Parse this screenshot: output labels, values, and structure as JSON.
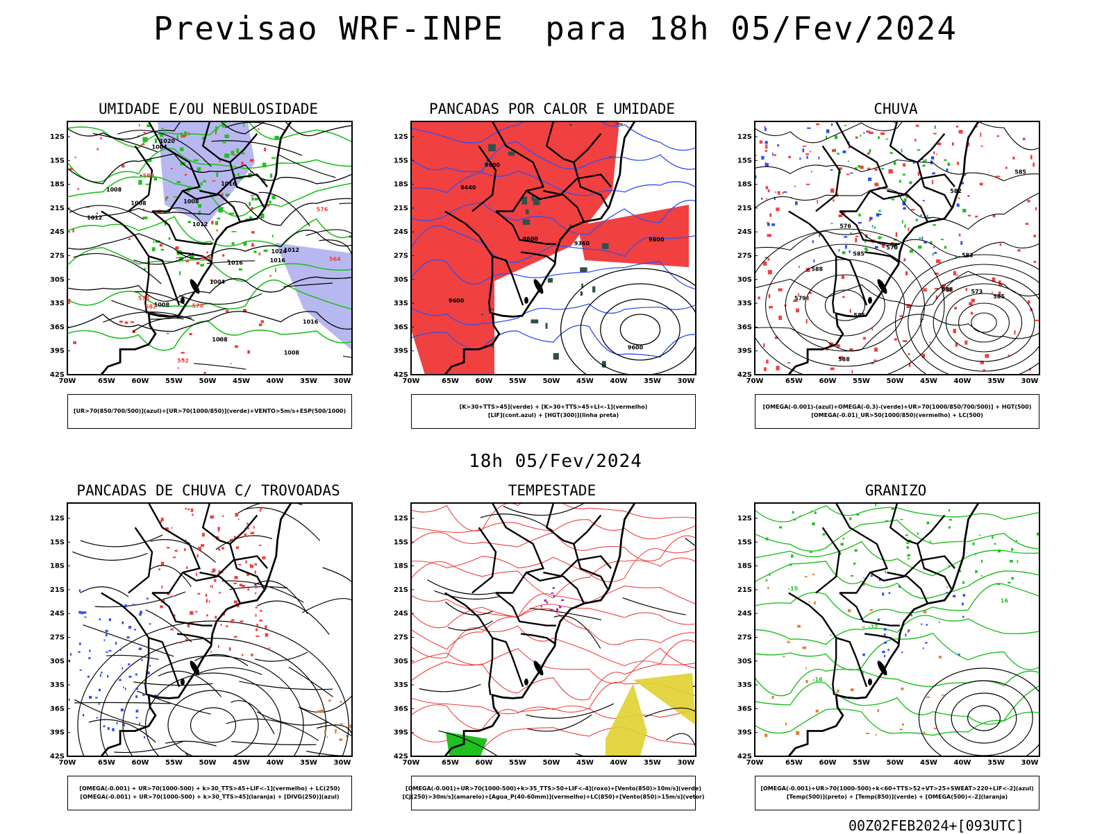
{
  "header": {
    "title": "Previsao WRF-INPE  para 18h 05/Fev/2024",
    "subtitle": "18h 05/Fev/2024",
    "footer": "00Z02FEB2024+[093UTC]"
  },
  "axes": {
    "lat_labels": [
      "12S",
      "15S",
      "18S",
      "21S",
      "24S",
      "27S",
      "30S",
      "33S",
      "36S",
      "39S",
      "42S"
    ],
    "lon_labels": [
      "70W",
      "65W",
      "60W",
      "55W",
      "50W",
      "45W",
      "40W",
      "35W",
      "30W"
    ]
  },
  "colors": {
    "red": "#f04040",
    "green": "#20c020",
    "blue": "#3050f0",
    "lavender": "#b8b8f0",
    "orange": "#e08030",
    "yellow": "#e0d030",
    "purple": "#a020c0",
    "teal": "#305050"
  },
  "panels": [
    {
      "title": "UMIDADE E/OU NEBULOSIDADE",
      "legend": [
        "[UR>70(850/700/500)](azul)+[UR>70(1000/850)](verde)+VENTO>5m/s+ESP(500/1000)"
      ],
      "contour_labels": [
        "1008",
        "1008",
        "1012",
        "1004",
        "1008",
        "1016",
        "1012",
        "1016",
        "1016",
        "1016",
        "1020",
        "1024",
        "1008",
        "1012",
        "1004",
        "1008",
        "1008",
        "576",
        "578",
        "570",
        "564",
        "582",
        "588",
        "552",
        "576"
      ]
    },
    {
      "title": "PANCADAS POR CALOR E UMIDADE",
      "legend": [
        "[K>30+TTS>45](verde) + [K>30+TTS>45+LI<-1](vermelho)",
        "[LIF](cont.azul) + [HGT(300)](linha preta)"
      ],
      "contour_labels": [
        "9600",
        "9600",
        "9600",
        "9600",
        "9600",
        "9440",
        "9360"
      ]
    },
    {
      "title": "CHUVA",
      "legend": [
        "[OMEGA(-0.001)-(azul)+OMEGA(-0.3)-(verde)+UR>70(1000/850/700/500)] + HGT(500)",
        "[OMEGA(-0.01)_UR>50(1000/850)(vermelho) + LC(500)"
      ],
      "contour_labels": [
        "588",
        "588",
        "585",
        "585",
        "585",
        "582",
        "588",
        "585",
        "582",
        "579",
        "576",
        "573",
        "570"
      ]
    },
    {
      "title": "PANCADAS DE CHUVA C/ TROVOADAS",
      "legend": [
        "[OMEGA(-0.001) + UR>70(1000-500) + k>30_TTS>45+LIF<-1](vermelho) + LC(250)",
        "[OMEGA(-0.001) + UR>70(1000-500) + k>30_TTS>45](laranja) + [DIVG(250)](azul)"
      ],
      "contour_labels": []
    },
    {
      "title": "TEMPESTADE",
      "legend": [
        "[OMEGA(-0.001)+UR>70(1000-500)+k>35_TTS>50+LIF<-4](roxo)+[Vento(850)>10m/s](verde)",
        "[CJ(250)>30m/s](amarelo)+[Agua_P(40-60mm)](vermelho)+LC(850)+[Vento(850)>15m/s](vetor)"
      ],
      "contour_labels": []
    },
    {
      "title": "GRANIZO",
      "legend": [
        "[OMEGA(-0.001)+UR>70(1000-500)+k<60+TTS>52+VT>25+SWEAT>220+LIF<-2](azul)",
        "[Temp(500)](preto) + [Temp(850)](verde) + [OMEGA(500)<-2](laranja)"
      ],
      "contour_labels": [
        "-12",
        "-15",
        "-16",
        "16"
      ]
    }
  ]
}
